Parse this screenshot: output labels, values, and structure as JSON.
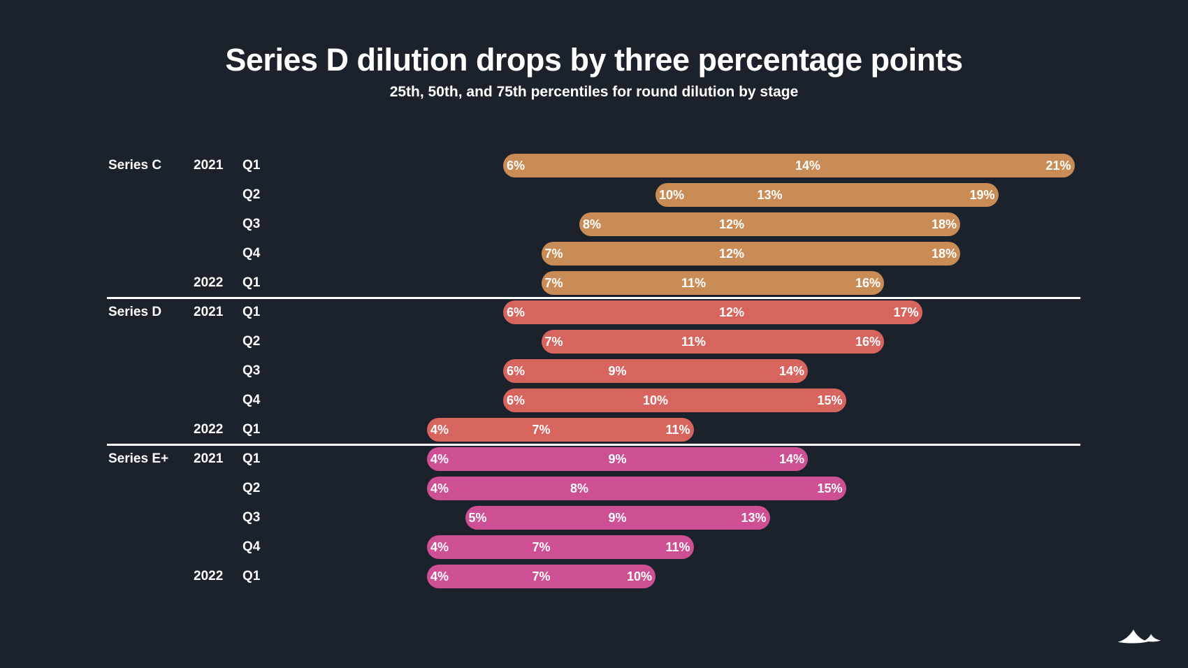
{
  "title": "Series D dilution drops by three percentage points",
  "subtitle": "25th, 50th, and 75th percentiles for round dilution by stage",
  "colors": {
    "background": "#1b222c",
    "text": "#ffffff",
    "divider": "#ffffff",
    "series_c_bar": "#ca8c56",
    "series_d_bar": "#d8645e",
    "series_e_bar": "#ce4f93"
  },
  "logo": {
    "icon": "mountains-logo",
    "color": "#ffffff"
  },
  "chart_data": {
    "type": "bar",
    "subtype": "horizontal-percentile-range",
    "title": "Series D dilution drops by three percentage points",
    "subtitle": "25th, 50th, and 75th percentiles for round dilution by stage",
    "unit": "%",
    "percentile_levels": [
      "25th",
      "50th",
      "75th"
    ],
    "xlabel": "",
    "ylabel": "",
    "x_axis": {
      "visible": false,
      "min": 0,
      "max": 22,
      "grid": false
    },
    "legend": "none",
    "groups": [
      {
        "label": "Series C",
        "color": "#ca8c56",
        "rows": [
          {
            "year_label": "2021",
            "quarter": "Q1",
            "p25": 6,
            "p50": 14,
            "p75": 21
          },
          {
            "year_label": "",
            "quarter": "Q2",
            "p25": 10,
            "p50": 13,
            "p75": 19
          },
          {
            "year_label": "",
            "quarter": "Q3",
            "p25": 8,
            "p50": 12,
            "p75": 18
          },
          {
            "year_label": "",
            "quarter": "Q4",
            "p25": 7,
            "p50": 12,
            "p75": 18
          },
          {
            "year_label": "2022",
            "quarter": "Q1",
            "p25": 7,
            "p50": 11,
            "p75": 16
          }
        ]
      },
      {
        "label": "Series D",
        "color": "#d8645e",
        "rows": [
          {
            "year_label": "2021",
            "quarter": "Q1",
            "p25": 6,
            "p50": 12,
            "p75": 17
          },
          {
            "year_label": "",
            "quarter": "Q2",
            "p25": 7,
            "p50": 11,
            "p75": 16
          },
          {
            "year_label": "",
            "quarter": "Q3",
            "p25": 6,
            "p50": 9,
            "p75": 14
          },
          {
            "year_label": "",
            "quarter": "Q4",
            "p25": 6,
            "p50": 10,
            "p75": 15
          },
          {
            "year_label": "2022",
            "quarter": "Q1",
            "p25": 4,
            "p50": 7,
            "p75": 11
          }
        ]
      },
      {
        "label": "Series E+",
        "color": "#ce4f93",
        "rows": [
          {
            "year_label": "2021",
            "quarter": "Q1",
            "p25": 4,
            "p50": 9,
            "p75": 14
          },
          {
            "year_label": "",
            "quarter": "Q2",
            "p25": 4,
            "p50": 8,
            "p75": 15
          },
          {
            "year_label": "",
            "quarter": "Q3",
            "p25": 5,
            "p50": 9,
            "p75": 13
          },
          {
            "year_label": "",
            "quarter": "Q4",
            "p25": 4,
            "p50": 7,
            "p75": 11
          },
          {
            "year_label": "2022",
            "quarter": "Q1",
            "p25": 4,
            "p50": 7,
            "p75": 10
          }
        ]
      }
    ]
  }
}
